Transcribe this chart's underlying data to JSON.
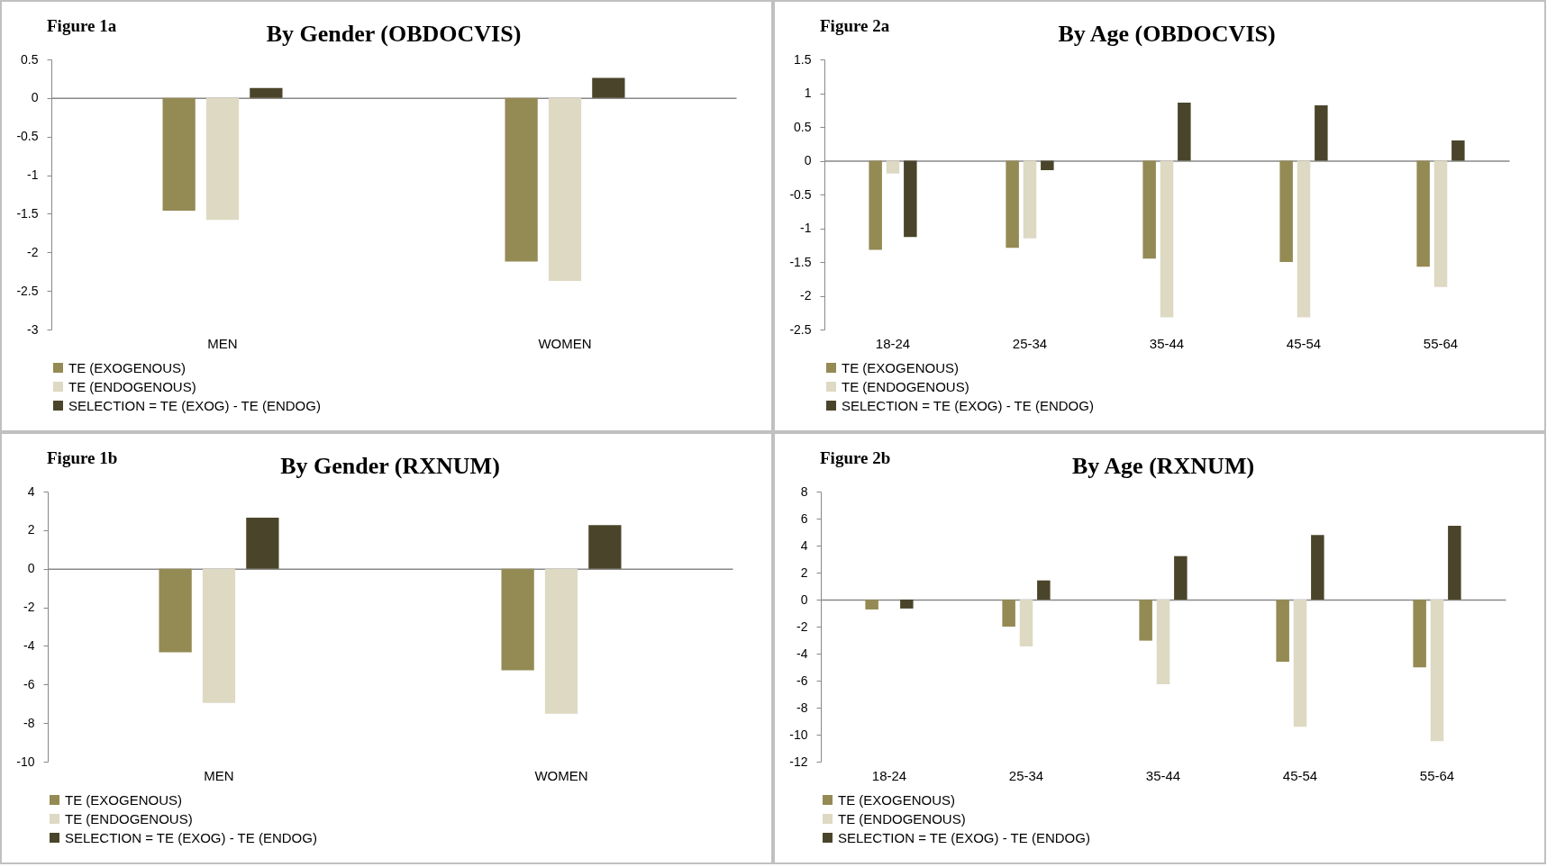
{
  "chart_data": [
    {
      "type": "bar",
      "title": "By Gender (OBDOCVIS)",
      "annotations": [
        "Figure 1a"
      ],
      "categories": [
        "MEN",
        "WOMEN"
      ],
      "series": [
        {
          "name": "TE (EXOGENOUS)",
          "color": "#948a54",
          "values": [
            -1.46,
            -2.12
          ]
        },
        {
          "name": "TE (ENDOGENOUS)",
          "color": "#ddd9c3",
          "values": [
            -1.58,
            -2.37
          ]
        },
        {
          "name": "SELECTION = TE (EXOG) - TE (ENDOG)",
          "color": "#4a452a",
          "values": [
            0.13,
            0.26
          ]
        }
      ],
      "ylim": [
        -3,
        0.5
      ],
      "yticks": [
        -3,
        -2.5,
        -2,
        -1.5,
        -1,
        -0.5,
        0,
        0.5
      ],
      "legend": "bottom"
    },
    {
      "type": "bar",
      "title": "By Age (OBDOCVIS)",
      "annotations": [
        "Figure 2a"
      ],
      "categories": [
        "18-24",
        "25-34",
        "35-44",
        "45-54",
        "55-64"
      ],
      "series": [
        {
          "name": "TE (EXOGENOUS)",
          "color": "#948a54",
          "values": [
            -1.32,
            -1.29,
            -1.45,
            -1.5,
            -1.57
          ]
        },
        {
          "name": "TE (ENDOGENOUS)",
          "color": "#ddd9c3",
          "values": [
            -0.19,
            -1.15,
            -2.32,
            -2.32,
            -1.87
          ]
        },
        {
          "name": "SELECTION = TE (EXOG) - TE (ENDOG)",
          "color": "#4a452a",
          "values": [
            -1.13,
            -0.14,
            0.86,
            0.82,
            0.3
          ]
        }
      ],
      "ylim": [
        -2.5,
        1.5
      ],
      "yticks": [
        -2.5,
        -2,
        -1.5,
        -1,
        -0.5,
        0,
        0.5,
        1,
        1.5
      ],
      "legend": "bottom"
    },
    {
      "type": "bar",
      "title": "By Gender (RXNUM)",
      "annotations": [
        "Figure 1b"
      ],
      "categories": [
        "MEN",
        "WOMEN"
      ],
      "series": [
        {
          "name": "TE (EXOGENOUS)",
          "color": "#948a54",
          "values": [
            -4.33,
            -5.26
          ]
        },
        {
          "name": "TE (ENDOGENOUS)",
          "color": "#ddd9c3",
          "values": [
            -6.96,
            -7.52
          ]
        },
        {
          "name": "SELECTION = TE (EXOG) - TE (ENDOG)",
          "color": "#4a452a",
          "values": [
            2.65,
            2.26
          ]
        }
      ],
      "ylim": [
        -10,
        4
      ],
      "yticks": [
        -10,
        -8,
        -6,
        -4,
        -2,
        0,
        2,
        4
      ],
      "legend": "bottom"
    },
    {
      "type": "bar",
      "title": "By Age (RXNUM)",
      "annotations": [
        "Figure 2b"
      ],
      "categories": [
        "18-24",
        "25-34",
        "35-44",
        "45-54",
        "55-64"
      ],
      "series": [
        {
          "name": "TE (EXOGENOUS)",
          "color": "#948a54",
          "values": [
            -0.73,
            -2.0,
            -3.04,
            -4.6,
            -5.02
          ]
        },
        {
          "name": "TE (ENDOGENOUS)",
          "color": "#ddd9c3",
          "values": [
            0,
            -3.46,
            -6.26,
            -9.41,
            -10.48
          ]
        },
        {
          "name": "SELECTION = TE (EXOG) - TE (ENDOG)",
          "color": "#4a452a",
          "values": [
            -0.66,
            1.42,
            3.22,
            4.78,
            5.47
          ]
        }
      ],
      "ylim": [
        -12,
        8
      ],
      "yticks": [
        -12,
        -10,
        -8,
        -6,
        -4,
        -2,
        0,
        2,
        4,
        6,
        8
      ],
      "legend": "bottom"
    }
  ]
}
